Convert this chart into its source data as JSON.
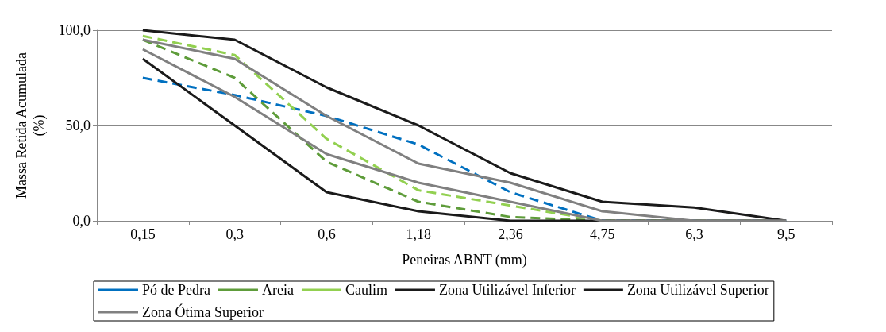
{
  "chart_data": {
    "type": "line",
    "xlabel": "Peneiras ABNT (mm)",
    "ylabel": "Massa Retida Acumulada\n(%)",
    "categories": [
      "0,15",
      "0,3",
      "0,6",
      "1,18",
      "2,36",
      "4,75",
      "6,3",
      "9,5"
    ],
    "ylim": [
      0,
      100
    ],
    "yticks": [
      {
        "value": 0,
        "label": "0,0"
      },
      {
        "value": 50,
        "label": "50,0"
      },
      {
        "value": 100,
        "label": "100,0"
      }
    ],
    "grid": "y",
    "legend": "bottom",
    "marker": "none",
    "series": [
      {
        "name": "Pó de Pedra",
        "color": "#0070c0",
        "line_style": "dashed",
        "values": [
          75,
          66,
          55,
          40,
          15,
          0,
          0,
          0
        ]
      },
      {
        "name": "Areia",
        "color": "#5e9c3a",
        "line_style": "dashed",
        "values": [
          95,
          75,
          31,
          10,
          2,
          0,
          0,
          0
        ]
      },
      {
        "name": "Caulim",
        "color": "#92d050",
        "line_style": "dashed",
        "values": [
          97,
          87,
          43,
          16,
          8,
          0,
          0,
          0
        ]
      },
      {
        "name": "Zona Utilizável Inferior",
        "color": "#1a1a1a",
        "line_style": "solid",
        "values": [
          85,
          50,
          15,
          5,
          0,
          0,
          0,
          0
        ]
      },
      {
        "name": "Zona Utilizável Superior",
        "color": "#1a1a1a",
        "line_style": "solid",
        "values": [
          100,
          95,
          70,
          50,
          25,
          10,
          7,
          0
        ]
      },
      {
        "name": "Zona Ótima Superior",
        "color": "#808080",
        "line_style": "solid",
        "values": [
          95,
          85,
          55,
          30,
          20,
          5,
          0,
          0
        ]
      },
      {
        "color": "#808080",
        "line_style": "solid",
        "values": [
          90,
          65,
          35,
          20,
          10,
          0,
          0,
          0
        ]
      }
    ]
  }
}
